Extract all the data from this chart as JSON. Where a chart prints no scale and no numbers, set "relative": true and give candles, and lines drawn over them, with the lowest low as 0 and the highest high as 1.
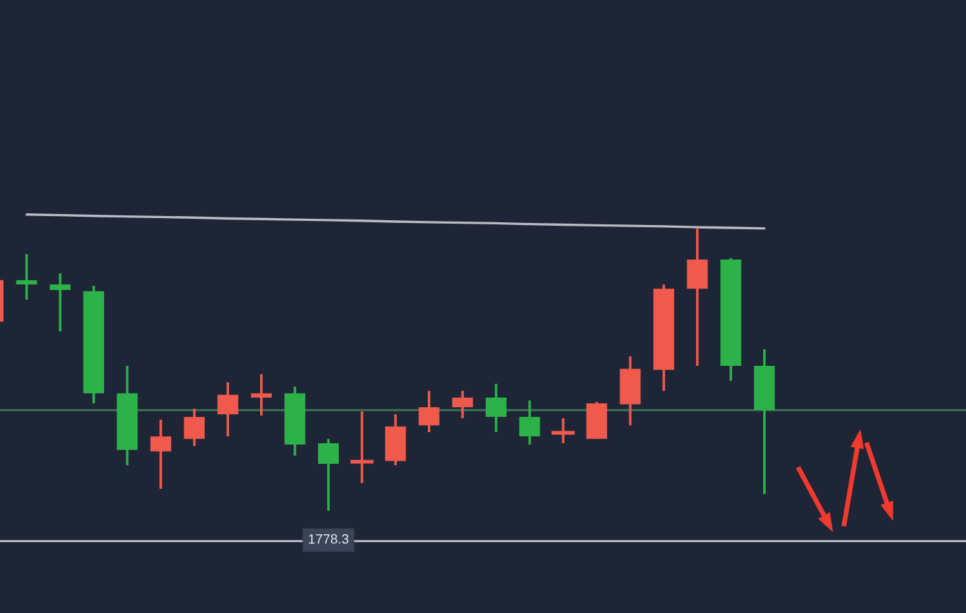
{
  "chart_data": {
    "type": "candlestick",
    "relative": true,
    "categories": [
      null,
      null,
      null,
      null,
      null,
      null,
      null,
      null,
      null,
      null,
      null,
      null,
      null,
      null,
      null,
      null,
      null,
      null,
      null,
      null,
      null,
      null,
      null,
      null
    ],
    "ohlc": [
      [
        0.668,
        0.815,
        0.668,
        0.815
      ],
      [
        0.815,
        0.907,
        0.746,
        0.8
      ],
      [
        0.8,
        0.839,
        0.634,
        0.78
      ],
      [
        0.776,
        0.795,
        0.38,
        0.415
      ],
      [
        0.415,
        0.512,
        0.161,
        0.215
      ],
      [
        0.21,
        0.322,
        0.078,
        0.263
      ],
      [
        0.254,
        0.361,
        0.229,
        0.332
      ],
      [
        0.341,
        0.454,
        0.263,
        0.41
      ],
      [
        0.4,
        0.483,
        0.337,
        0.415
      ],
      [
        0.415,
        0.439,
        0.195,
        0.234
      ],
      [
        0.239,
        0.254,
        0,
        0.166
      ],
      [
        0.171,
        0.351,
        0.098,
        0.176
      ],
      [
        0.176,
        0.341,
        0.161,
        0.298
      ],
      [
        0.302,
        0.424,
        0.278,
        0.366
      ],
      [
        0.366,
        0.424,
        0.327,
        0.4
      ],
      [
        0.4,
        0.449,
        0.278,
        0.332
      ],
      [
        0.332,
        0.39,
        0.234,
        0.263
      ],
      [
        0.273,
        0.327,
        0.239,
        0.278
      ],
      [
        0.254,
        0.385,
        0.254,
        0.38
      ],
      [
        0.376,
        0.546,
        0.302,
        0.502
      ],
      [
        0.498,
        0.8,
        0.424,
        0.785
      ],
      [
        0.785,
        1,
        0.512,
        0.888
      ],
      [
        0.888,
        0.893,
        0.459,
        0.512
      ],
      [
        0.512,
        0.571,
        0.059,
        0.356
      ]
    ],
    "colors": [
      "#ef5a4c",
      "#2db24a",
      "#2db24a",
      "#2db24a",
      "#2db24a",
      "#ef5a4c",
      "#ef5a4c",
      "#ef5a4c",
      "#ef5a4c",
      "#2db24a",
      "#2db24a",
      "#ef5a4c",
      "#ef5a4c",
      "#ef5a4c",
      "#ef5a4c",
      "#2db24a",
      "#2db24a",
      "#ef5a4c",
      "#ef5a4c",
      "#ef5a4c",
      "#ef5a4c",
      "#ef5a4c",
      "#2db24a",
      "#2db24a"
    ],
    "series": [
      {
        "type": "line",
        "color": "#b8bcc6",
        "values": [
          null,
          1.047,
          1.045,
          1.042,
          1.04,
          1.038,
          1.036,
          1.033,
          1.031,
          1.029,
          1.027,
          1.025,
          1.022,
          1.02,
          1.018,
          1.016,
          1.013,
          1.011,
          1.009,
          1.007,
          1.005,
          1.002,
          1.0,
          0.998
        ]
      }
    ],
    "ref_lines": [
      {
        "axis": "y",
        "value": 0.356,
        "color": "#3f7a55"
      },
      {
        "axis": "y",
        "value": -0.107,
        "color": "#c9ccd4"
      }
    ],
    "annotations": [
      "1778.3"
    ]
  }
}
